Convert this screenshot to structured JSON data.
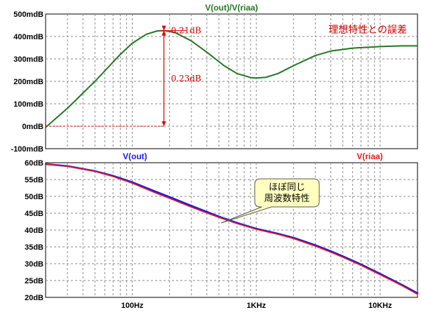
{
  "chart_data": [
    {
      "type": "line",
      "title": "V(out)/V(riaa)",
      "x_scale": "log",
      "xlim": [
        20,
        20000
      ],
      "ylim": [
        -100,
        500
      ],
      "y_unit": "mdB",
      "yticks": [
        {
          "v": 500,
          "label": "500mdB"
        },
        {
          "v": 400,
          "label": "400mdB"
        },
        {
          "v": 300,
          "label": "300mdB"
        },
        {
          "v": 200,
          "label": "200mdB"
        },
        {
          "v": 100,
          "label": "100mdB"
        },
        {
          "v": 0,
          "label": "0mdB"
        },
        {
          "v": -100,
          "label": "-100mdB"
        }
      ],
      "grid": true,
      "series": [
        {
          "name": "V(out)/V(riaa)",
          "color": "#227722",
          "x": [
            20,
            30,
            50,
            80,
            100,
            130,
            160,
            180,
            220,
            300,
            400,
            550,
            700,
            900,
            1000,
            1200,
            1500,
            2000,
            3000,
            4000,
            6000,
            8000,
            10000,
            15000,
            20000
          ],
          "y": [
            -5,
            80,
            200,
            320,
            370,
            410,
            425,
            426,
            418,
            380,
            330,
            270,
            235,
            217,
            215,
            218,
            235,
            270,
            315,
            335,
            348,
            352,
            355,
            358,
            358
          ]
        }
      ],
      "annotations": {
        "upper_gap": "0.21dB",
        "lower_gap": "0.23dB",
        "note": "理想特性との誤差"
      }
    },
    {
      "type": "line",
      "x_scale": "log",
      "xlim": [
        20,
        20000
      ],
      "ylim": [
        20,
        60
      ],
      "y_unit": "dB",
      "yticks": [
        {
          "v": 60,
          "label": "60dB"
        },
        {
          "v": 55,
          "label": "55dB"
        },
        {
          "v": 50,
          "label": "50dB"
        },
        {
          "v": 45,
          "label": "45dB"
        },
        {
          "v": 40,
          "label": "40dB"
        },
        {
          "v": 35,
          "label": "35dB"
        },
        {
          "v": 30,
          "label": "30dB"
        },
        {
          "v": 25,
          "label": "25dB"
        },
        {
          "v": 20,
          "label": "20dB"
        }
      ],
      "xticks": [
        {
          "v": 100,
          "label": "100Hz"
        },
        {
          "v": 1000,
          "label": "1KHz"
        },
        {
          "v": 10000,
          "label": "10KHz"
        }
      ],
      "grid": true,
      "series": [
        {
          "name": "V(out)",
          "color": "#1a1aee",
          "x": [
            20,
            30,
            50,
            70,
            100,
            150,
            200,
            300,
            400,
            500,
            700,
            1000,
            1500,
            2000,
            3000,
            4000,
            5000,
            7000,
            10000,
            15000,
            20000
          ],
          "y": [
            59.6,
            59.0,
            57.5,
            56.1,
            54.2,
            51.6,
            49.8,
            47.2,
            45.4,
            44.0,
            42.1,
            40.4,
            38.9,
            37.7,
            35.5,
            33.7,
            32.2,
            29.8,
            27.0,
            23.7,
            21.2
          ]
        },
        {
          "name": "V(riaa)",
          "color": "#ee1a1a",
          "x": [
            20,
            30,
            50,
            70,
            100,
            150,
            200,
            300,
            400,
            500,
            700,
            1000,
            1500,
            2000,
            3000,
            4000,
            5000,
            7000,
            10000,
            15000,
            20000
          ],
          "y": [
            59.6,
            58.95,
            57.4,
            55.9,
            53.9,
            51.2,
            49.4,
            46.8,
            45.05,
            43.75,
            41.9,
            40.2,
            38.7,
            37.45,
            35.2,
            33.4,
            31.9,
            29.5,
            26.7,
            23.45,
            20.9
          ]
        }
      ],
      "callout": "ほぼ同じ\n周波数特性"
    }
  ]
}
